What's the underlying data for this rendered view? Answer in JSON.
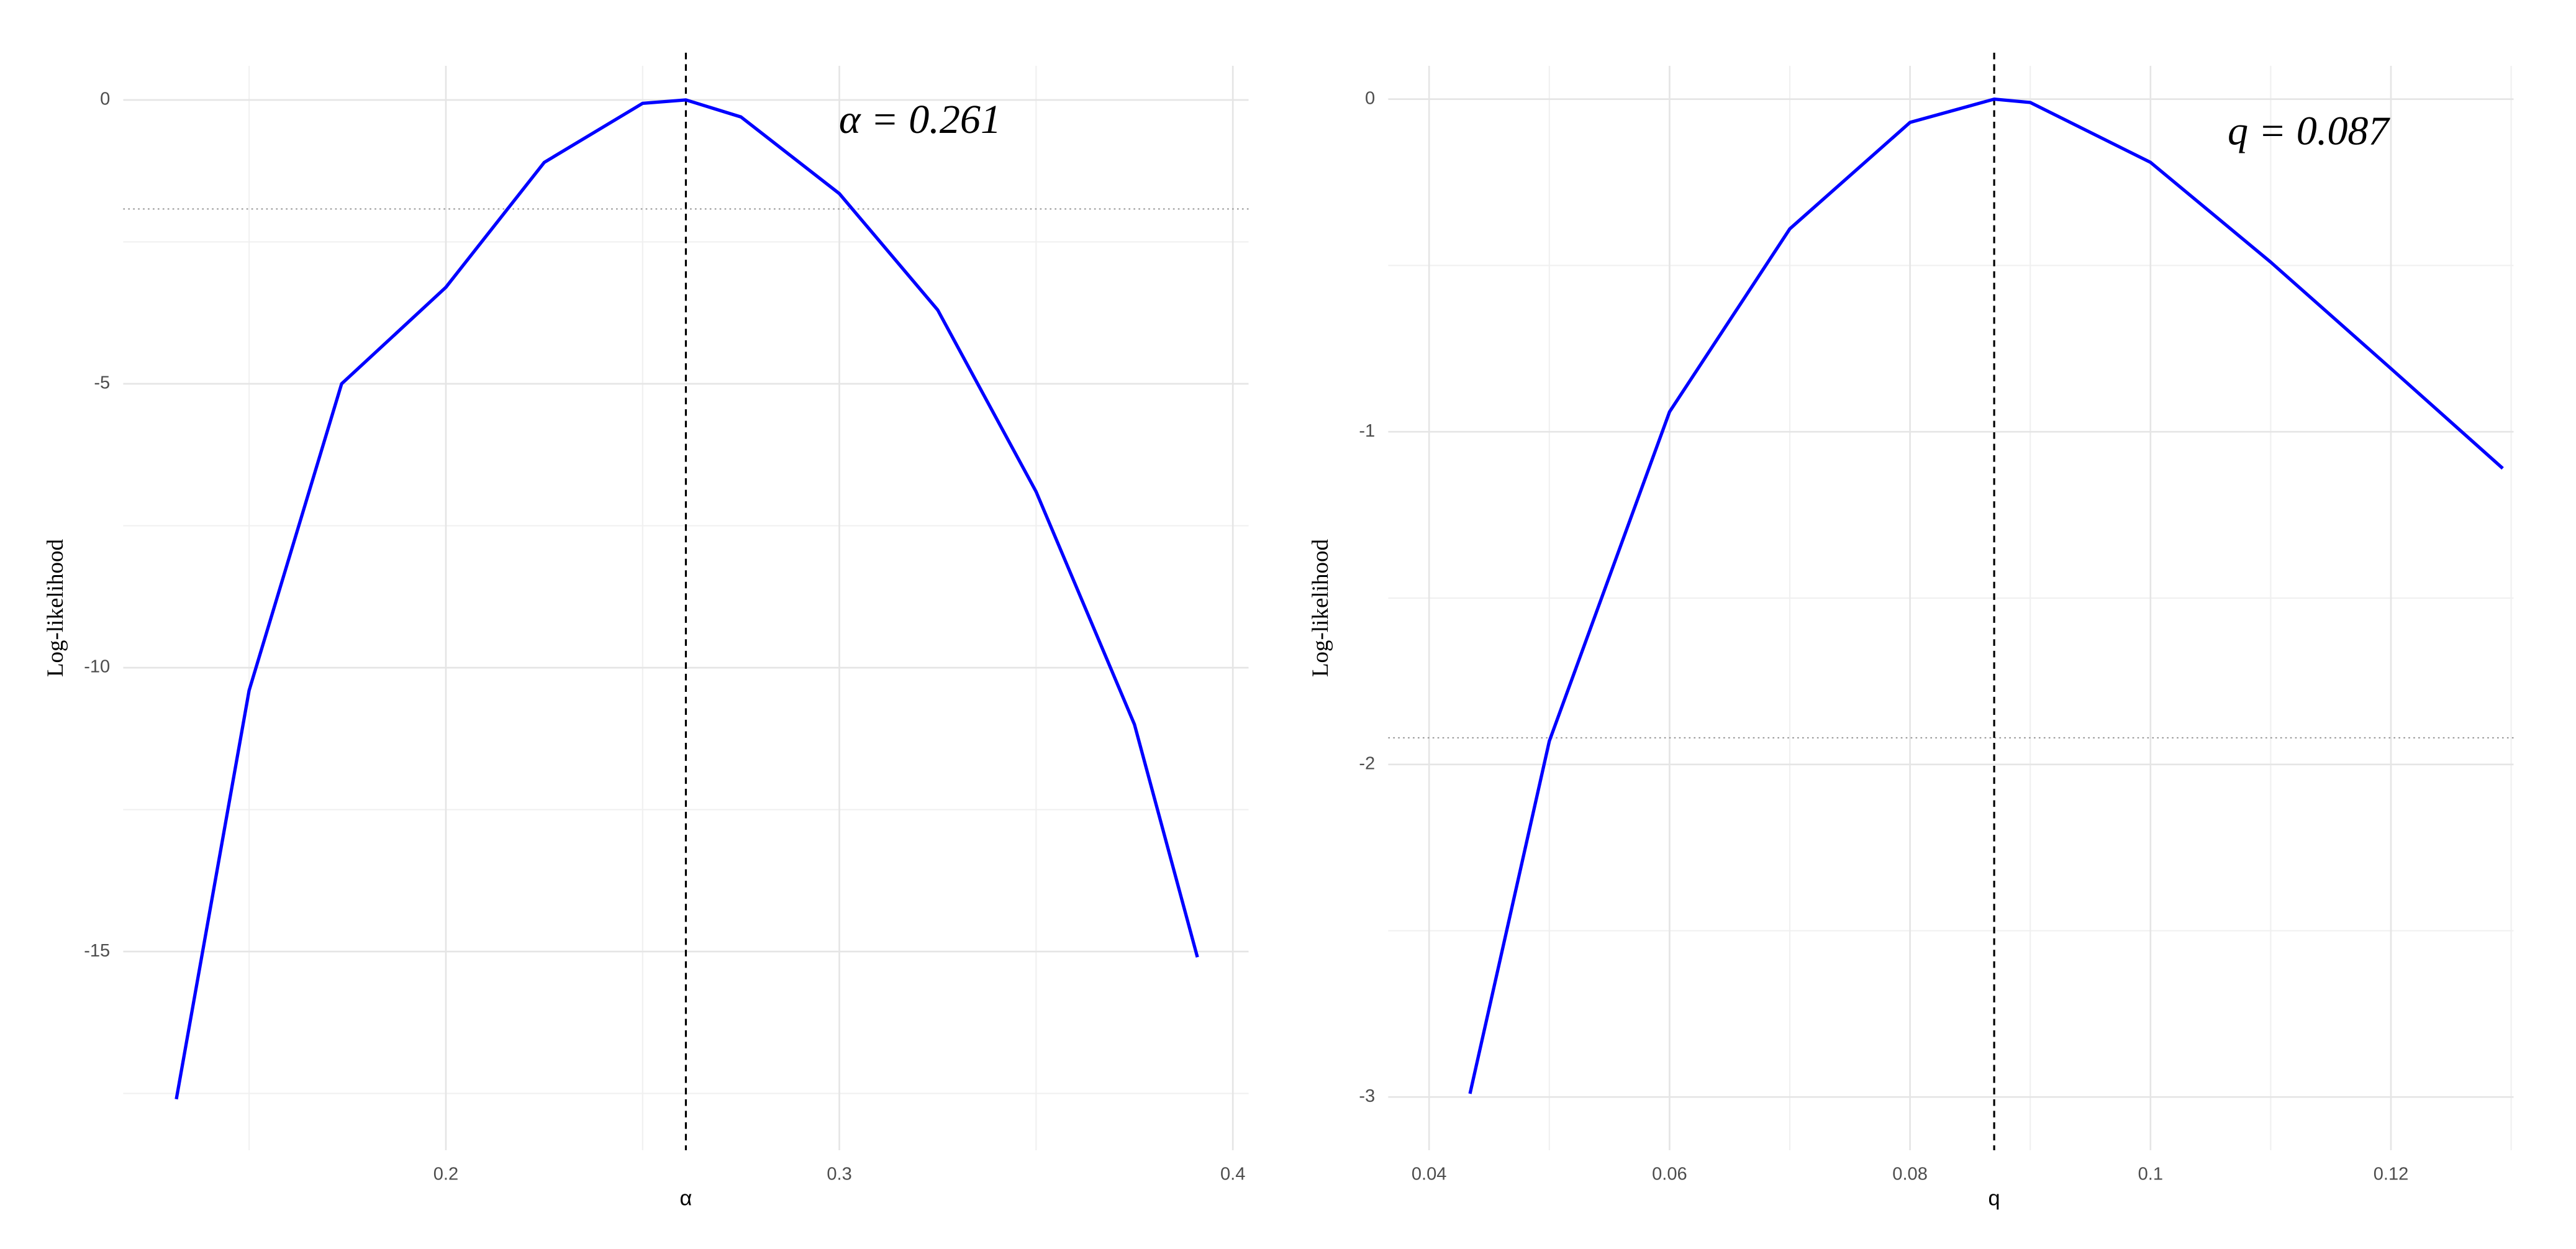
{
  "chart_data": [
    {
      "type": "line",
      "x_label": "α",
      "y_label": "Log-likelihood",
      "annotation": "α = 0.261",
      "x": [
        0.1315,
        0.15,
        0.1735,
        0.2,
        0.225,
        0.25,
        0.261,
        0.275,
        0.3,
        0.325,
        0.35,
        0.375,
        0.391
      ],
      "values": [
        -17.6,
        -10.4,
        -5,
        -3.3,
        -1.1,
        -0.06,
        0,
        -0.3,
        -1.65,
        -3.7,
        -6.9,
        -11,
        -15.1
      ],
      "color": "#0000ff",
      "xlim": [
        0.118,
        0.404
      ],
      "ylim": [
        -18.5,
        0.6
      ],
      "xticks": [
        0.2,
        0.3,
        0.4
      ],
      "yticks": [
        0,
        -5,
        -10,
        -15
      ],
      "vline": 0.261,
      "hline": -1.92,
      "grid": true
    },
    {
      "type": "line",
      "x_label": "q",
      "y_label": "Log-likelihood",
      "annotation": "q = 0.087",
      "x": [
        0.0434,
        0.05,
        0.06,
        0.07,
        0.08,
        0.087,
        0.09,
        0.1,
        0.11,
        0.12,
        0.1293
      ],
      "values": [
        -2.99,
        -1.93,
        -0.94,
        -0.39,
        -0.07,
        0,
        -0.01,
        -0.19,
        -0.49,
        -0.81,
        -1.11
      ],
      "color": "#0000ff",
      "xlim": [
        0.0366,
        0.1302
      ],
      "ylim": [
        -3.16,
        0.1
      ],
      "xticks": [
        0.04,
        0.06,
        0.08,
        0.1,
        0.12
      ],
      "yticks": [
        0,
        -1,
        -2,
        -3
      ],
      "vline": 0.087,
      "hline": -1.92,
      "grid": true
    }
  ]
}
